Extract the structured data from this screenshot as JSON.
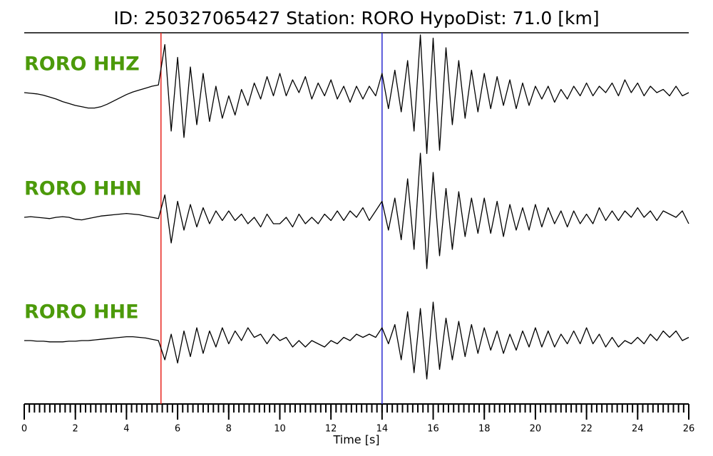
{
  "chart_data": {
    "type": "line",
    "title": "ID: 250327065427   Station: RORO   HypoDist:    71.0 [km]",
    "x_label": "Time [s]",
    "xlim": [
      0,
      26
    ],
    "xticks": [
      0,
      2,
      4,
      6,
      8,
      10,
      12,
      14,
      16,
      18,
      20,
      22,
      24,
      26
    ],
    "minor_tick_interval": 0.2,
    "ylim": [
      -1,
      1
    ],
    "x": [
      0,
      0.25,
      0.5,
      0.75,
      1,
      1.25,
      1.5,
      1.75,
      2,
      2.25,
      2.5,
      2.75,
      3,
      3.25,
      3.5,
      3.75,
      4,
      4.25,
      4.5,
      4.75,
      5,
      5.25,
      5.5,
      5.75,
      6,
      6.25,
      6.5,
      6.75,
      7,
      7.25,
      7.5,
      7.75,
      8,
      8.25,
      8.5,
      8.75,
      9,
      9.25,
      9.5,
      9.75,
      10,
      10.25,
      10.5,
      10.75,
      11,
      11.25,
      11.5,
      11.75,
      12,
      12.25,
      12.5,
      12.75,
      13,
      13.25,
      13.5,
      13.75,
      14,
      14.25,
      14.5,
      14.75,
      15,
      15.25,
      15.5,
      15.75,
      16,
      16.25,
      16.5,
      16.75,
      17,
      17.25,
      17.5,
      17.75,
      18,
      18.25,
      18.5,
      18.75,
      19,
      19.25,
      19.5,
      19.75,
      20,
      20.25,
      20.5,
      20.75,
      21,
      21.25,
      21.5,
      21.75,
      22,
      22.25,
      22.5,
      22.75,
      23,
      23.25,
      23.5,
      23.75,
      24,
      24.25,
      24.5,
      24.75,
      25,
      25.25,
      25.5,
      25.75,
      26
    ],
    "series": [
      {
        "name": "RORO HHZ",
        "color": "#000000",
        "label_color": "#4c9a0a",
        "values": [
          0.0,
          -0.01,
          -0.02,
          -0.04,
          -0.07,
          -0.1,
          -0.14,
          -0.17,
          -0.2,
          -0.22,
          -0.24,
          -0.24,
          -0.22,
          -0.18,
          -0.13,
          -0.08,
          -0.03,
          0.01,
          0.04,
          0.07,
          0.1,
          0.12,
          0.75,
          -0.6,
          0.55,
          -0.7,
          0.4,
          -0.5,
          0.3,
          -0.45,
          0.1,
          -0.4,
          -0.05,
          -0.35,
          0.05,
          -0.2,
          0.15,
          -0.1,
          0.25,
          -0.05,
          0.3,
          -0.05,
          0.2,
          0.0,
          0.25,
          -0.1,
          0.15,
          -0.05,
          0.2,
          -0.1,
          0.1,
          -0.15,
          0.1,
          -0.1,
          0.1,
          -0.05,
          0.3,
          -0.25,
          0.35,
          -0.3,
          0.5,
          -0.6,
          0.9,
          -0.95,
          0.85,
          -0.9,
          0.7,
          -0.5,
          0.5,
          -0.4,
          0.35,
          -0.3,
          0.3,
          -0.25,
          0.25,
          -0.2,
          0.2,
          -0.25,
          0.15,
          -0.2,
          0.1,
          -0.1,
          0.1,
          -0.15,
          0.05,
          -0.1,
          0.1,
          -0.05,
          0.15,
          -0.05,
          0.1,
          0.0,
          0.15,
          -0.05,
          0.2,
          0.0,
          0.15,
          -0.05,
          0.1,
          0.0,
          0.05,
          -0.05,
          0.1,
          -0.05,
          0.0
        ]
      },
      {
        "name": "RORO HHN",
        "color": "#000000",
        "label_color": "#4c9a0a",
        "values": [
          0.0,
          0.01,
          0.0,
          -0.01,
          -0.02,
          0.0,
          0.01,
          0.0,
          -0.03,
          -0.04,
          -0.02,
          0.0,
          0.02,
          0.03,
          0.04,
          0.05,
          0.06,
          0.05,
          0.04,
          0.02,
          0.0,
          -0.02,
          0.35,
          -0.4,
          0.25,
          -0.2,
          0.2,
          -0.15,
          0.15,
          -0.1,
          0.1,
          -0.05,
          0.1,
          -0.05,
          0.05,
          -0.1,
          0.0,
          -0.15,
          0.05,
          -0.1,
          -0.1,
          0.0,
          -0.15,
          0.05,
          -0.1,
          0.0,
          -0.1,
          0.05,
          -0.05,
          0.1,
          -0.05,
          0.1,
          0.0,
          0.15,
          -0.05,
          0.1,
          0.25,
          -0.2,
          0.3,
          -0.35,
          0.6,
          -0.5,
          1.0,
          -0.8,
          0.7,
          -0.6,
          0.45,
          -0.5,
          0.4,
          -0.3,
          0.3,
          -0.25,
          0.3,
          -0.25,
          0.25,
          -0.3,
          0.2,
          -0.2,
          0.15,
          -0.2,
          0.2,
          -0.15,
          0.15,
          -0.1,
          0.1,
          -0.15,
          0.1,
          -0.1,
          0.05,
          -0.1,
          0.15,
          -0.05,
          0.1,
          -0.05,
          0.1,
          0.0,
          0.15,
          0.0,
          0.1,
          -0.05,
          0.1,
          0.05,
          0.0,
          0.1,
          -0.1
        ]
      },
      {
        "name": "RORO HHE",
        "color": "#000000",
        "label_color": "#4c9a0a",
        "values": [
          0.0,
          0.0,
          -0.01,
          -0.01,
          -0.02,
          -0.02,
          -0.02,
          -0.01,
          -0.01,
          0.0,
          0.0,
          0.01,
          0.02,
          0.03,
          0.04,
          0.05,
          0.06,
          0.06,
          0.05,
          0.04,
          0.02,
          0.0,
          -0.3,
          0.1,
          -0.35,
          0.15,
          -0.25,
          0.2,
          -0.2,
          0.15,
          -0.1,
          0.2,
          -0.05,
          0.15,
          0.0,
          0.2,
          0.05,
          0.1,
          -0.05,
          0.1,
          0.0,
          0.05,
          -0.1,
          0.0,
          -0.1,
          0.0,
          -0.05,
          -0.1,
          0.0,
          -0.05,
          0.05,
          0.0,
          0.1,
          0.05,
          0.1,
          0.05,
          0.2,
          -0.05,
          0.25,
          -0.3,
          0.45,
          -0.5,
          0.5,
          -0.6,
          0.6,
          -0.45,
          0.35,
          -0.3,
          0.3,
          -0.25,
          0.25,
          -0.2,
          0.2,
          -0.15,
          0.15,
          -0.2,
          0.1,
          -0.15,
          0.15,
          -0.1,
          0.2,
          -0.1,
          0.15,
          -0.1,
          0.1,
          -0.05,
          0.15,
          -0.05,
          0.2,
          -0.05,
          0.1,
          -0.1,
          0.05,
          -0.1,
          0.0,
          -0.05,
          0.05,
          -0.05,
          0.1,
          0.0,
          0.15,
          0.05,
          0.15,
          0.0,
          0.05
        ]
      }
    ],
    "markers": [
      {
        "x": 5.35,
        "color": "#e8251f"
      },
      {
        "x": 14.0,
        "color": "#2a2ad0"
      }
    ]
  }
}
